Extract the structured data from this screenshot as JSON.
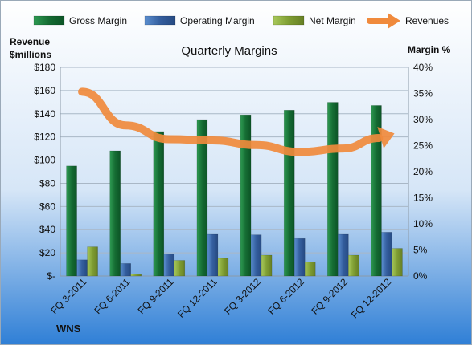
{
  "chart_data": {
    "type": "bar",
    "title": "Quarterly Margins",
    "company": "WNS",
    "ylabel_left": [
      "Revenue",
      "$millions"
    ],
    "ylabel_right": "Margin %",
    "ylim_left": [
      0,
      180
    ],
    "ylim_right": [
      0,
      40
    ],
    "yticks_left": [
      "$-",
      "$20",
      "$40",
      "$60",
      "$80",
      "$100",
      "$120",
      "$140",
      "$160",
      "$180"
    ],
    "yticks_right": [
      "0%",
      "5%",
      "10%",
      "15%",
      "20%",
      "25%",
      "30%",
      "35%",
      "40%"
    ],
    "categories": [
      "FQ 3-2011",
      "FQ 6-2011",
      "FQ 9-2011",
      "FQ 12-2011",
      "FQ 3-2012",
      "FQ 6-2012",
      "FQ 9-2012",
      "FQ 12-2012"
    ],
    "series": [
      {
        "name": "Gross Margin",
        "axis": "right",
        "kind": "bar",
        "color": "#1e7a3c",
        "values": [
          21.1,
          24.0,
          27.7,
          30.0,
          30.9,
          31.8,
          33.3,
          32.7
        ]
      },
      {
        "name": "Operating Margin",
        "axis": "right",
        "kind": "bar",
        "color": "#3f6fb5",
        "values": [
          3.1,
          2.4,
          4.2,
          8.0,
          7.9,
          7.2,
          8.0,
          8.4
        ]
      },
      {
        "name": "Net Margin",
        "axis": "right",
        "kind": "bar",
        "color": "#8aab3c",
        "values": [
          5.6,
          0.4,
          3.0,
          3.4,
          4.0,
          2.7,
          4.0,
          5.3
        ]
      },
      {
        "name": "Revenues",
        "axis": "left",
        "kind": "line",
        "color": "#f08a3c",
        "values": [
          159,
          130,
          118,
          117,
          113,
          107,
          110,
          121
        ]
      }
    ],
    "legend_position": "top",
    "grid": true
  }
}
